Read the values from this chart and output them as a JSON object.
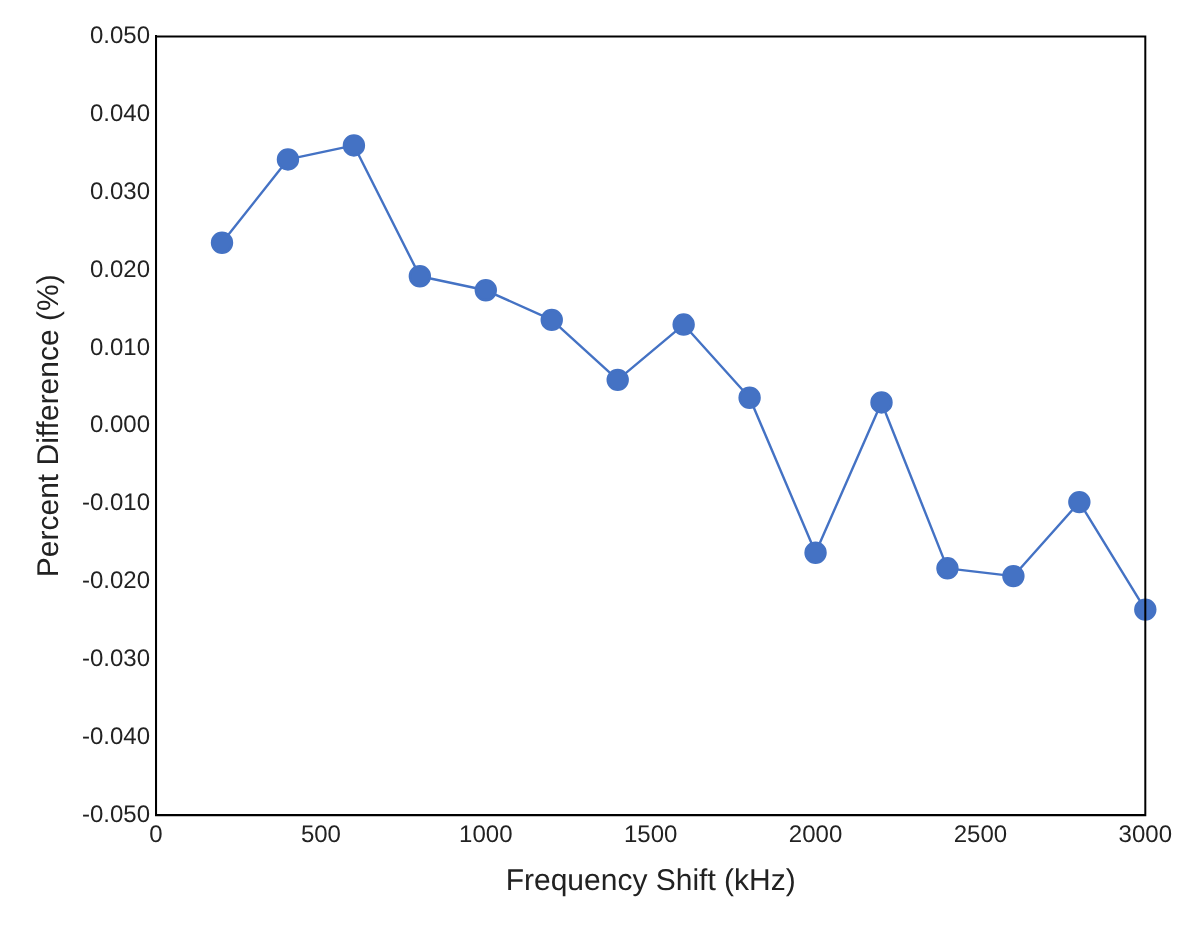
{
  "chart_data": {
    "type": "line",
    "xlabel": "Frequency Shift (kHz)",
    "ylabel": "Percent Difference (%)",
    "x": [
      200,
      400,
      600,
      800,
      1000,
      1200,
      1400,
      1600,
      1800,
      2000,
      2200,
      2400,
      2600,
      2800,
      3000
    ],
    "series": [
      {
        "color": "#4472c4",
        "values": [
          0.0235,
          0.0342,
          0.036,
          0.0192,
          0.0174,
          0.0136,
          0.0059,
          0.013,
          0.0036,
          -0.0163,
          0.003,
          -0.0183,
          -0.0193,
          -0.0098,
          -0.0236
        ]
      }
    ],
    "xlim": [
      0,
      3000
    ],
    "xticks": [
      0,
      500,
      1000,
      1500,
      2000,
      2500,
      3000
    ],
    "ylim": [
      -0.05,
      0.05
    ],
    "yticks": [
      {
        "value": -0.05,
        "label": "-0.050"
      },
      {
        "value": -0.04,
        "label": "-0.040"
      },
      {
        "value": -0.03,
        "label": "-0.030"
      },
      {
        "value": -0.02,
        "label": "-0.020"
      },
      {
        "value": -0.01,
        "label": "-0.010"
      },
      {
        "value": 0,
        "label": "0.000"
      },
      {
        "value": 0.01,
        "label": "0.010"
      },
      {
        "value": 0.02,
        "label": "0.020"
      },
      {
        "value": 0.03,
        "label": "0.030"
      },
      {
        "value": 0.04,
        "label": "0.040"
      },
      {
        "value": 0.05,
        "label": "0.050"
      }
    ],
    "grid": false,
    "legend": false,
    "marker": "circle",
    "line_style": "solid"
  }
}
